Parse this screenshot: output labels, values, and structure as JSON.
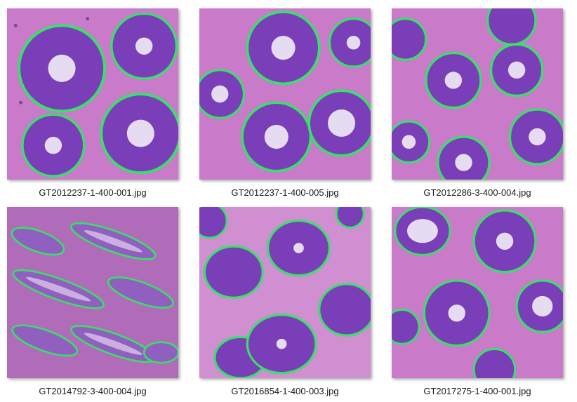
{
  "gallery": {
    "items": [
      {
        "filename": "GT2012237-1-400-001.jpg",
        "icon": "histology-image-icon"
      },
      {
        "filename": "GT2012237-1-400-005.jpg",
        "icon": "histology-image-icon"
      },
      {
        "filename": "GT2012286-3-400-004.jpg",
        "icon": "histology-image-icon"
      },
      {
        "filename": "GT2014792-3-400-004.jpg",
        "icon": "histology-image-icon"
      },
      {
        "filename": "GT2016854-1-400-003.jpg",
        "icon": "histology-image-icon"
      },
      {
        "filename": "GT2017275-1-400-001.jpg",
        "icon": "histology-image-icon"
      }
    ]
  },
  "colors": {
    "tissue": "#c97ac9",
    "gland": "#7a3fb8",
    "lumen": "#e6dcf2",
    "boundary": "#39e06a",
    "nuclei": "#2a1460"
  }
}
